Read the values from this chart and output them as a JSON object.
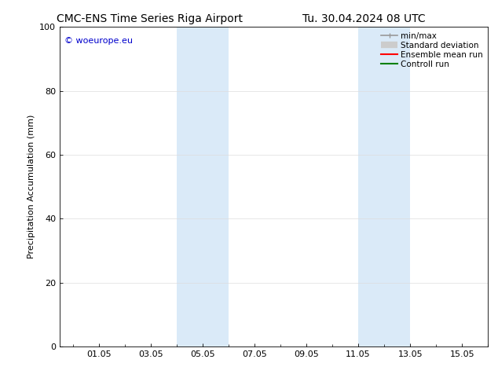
{
  "title_left": "CMC-ENS Time Series Riga Airport",
  "title_right": "Tu. 30.04.2024 08 UTC",
  "ylabel": "Precipitation Accumulation (mm)",
  "ylim": [
    0,
    100
  ],
  "yticks": [
    0,
    20,
    40,
    60,
    80,
    100
  ],
  "xlim": [
    -0.5,
    16.0
  ],
  "x_tick_labels": [
    "01.05",
    "03.05",
    "05.05",
    "07.05",
    "09.05",
    "11.05",
    "13.05",
    "15.05"
  ],
  "x_tick_positions": [
    1,
    3,
    5,
    7,
    9,
    11,
    13,
    15
  ],
  "shaded_bands": [
    {
      "xmin": 4.0,
      "xmax": 6.0
    },
    {
      "xmin": 11.0,
      "xmax": 13.0
    }
  ],
  "shade_color": "#daeaf8",
  "background_color": "#ffffff",
  "watermark_text": "© woeurope.eu",
  "watermark_color": "#0000cc",
  "legend_entries": [
    {
      "label": "min/max",
      "color": "#999999",
      "lw": 1.2
    },
    {
      "label": "Standard deviation",
      "color": "#cccccc",
      "lw": 6
    },
    {
      "label": "Ensemble mean run",
      "color": "#ff0000",
      "lw": 1.5
    },
    {
      "label": "Controll run",
      "color": "#008000",
      "lw": 1.5
    }
  ],
  "grid_color": "#dddddd",
  "title_fontsize": 10,
  "axis_label_fontsize": 8,
  "tick_fontsize": 8,
  "legend_fontsize": 7.5,
  "watermark_fontsize": 8
}
